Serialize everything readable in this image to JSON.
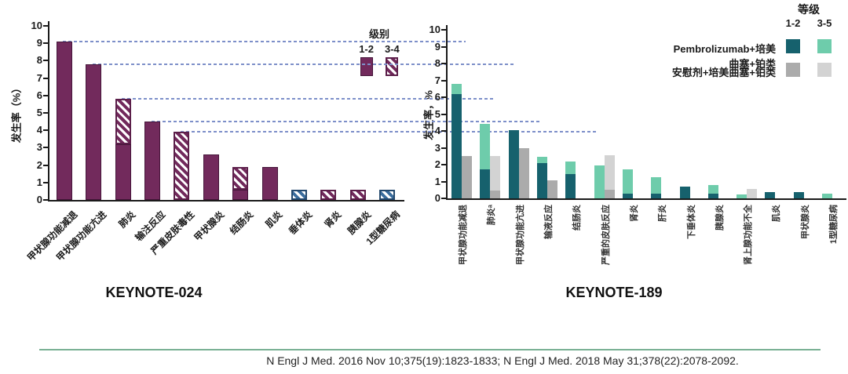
{
  "colors": {
    "purple_solid": "#722a5c",
    "hatch_purple": "#722a5c",
    "hatch_blue": "#3c6e9e",
    "teal_dark": "#16616d",
    "teal_light": "#6eccab",
    "gray_dark": "#ababab",
    "gray_light": "#d3d3d3",
    "reference_line": "#7d8fc9",
    "divider": "#79b093",
    "axis": "#1a1a1a"
  },
  "chart_data": [
    {
      "type": "bar",
      "title": "KEYNOTE-024",
      "ylabel": "发生率（%）",
      "ylim": [
        0,
        10
      ],
      "ytick_step": 1,
      "grid": false,
      "legend": {
        "title": "级别",
        "columns": [
          "1-2",
          "3-4"
        ],
        "position": "top-right-of-plot"
      },
      "categories": [
        "甲状腺功能减退",
        "甲状腺功能亢进",
        "肺炎",
        "输注反应",
        "严重皮肤毒性",
        "甲状腺炎",
        "结肠炎",
        "肌炎",
        "垂体炎",
        "肾炎",
        "胰腺炎",
        "1型糖尿病"
      ],
      "series": [
        {
          "name": "级别1-2",
          "style": "solid",
          "color": "#722a5c",
          "values": [
            9.1,
            7.8,
            3.2,
            4.5,
            0,
            2.6,
            0.6,
            1.9,
            0,
            0,
            0,
            0
          ]
        },
        {
          "name": "级别3-4",
          "style": "hatched",
          "color": "#722a5c",
          "values": [
            0,
            0,
            2.6,
            0,
            3.9,
            0,
            1.3,
            0,
            0.6,
            0.6,
            0.6,
            0.6
          ]
        }
      ],
      "hatch_blue_categories": [
        "垂体炎",
        "1型糖尿病"
      ],
      "reference_lines": [
        9.1,
        7.8,
        5.8,
        4.5,
        3.9
      ]
    },
    {
      "type": "bar",
      "title": "KEYNOTE-189",
      "ylabel": "发生率，%",
      "ylim": [
        0,
        10
      ],
      "ytick_step": 1,
      "grid": false,
      "legend": {
        "title": "等级",
        "columns": [
          "1-2",
          "3-5"
        ],
        "rows": [
          "Pembrolizumab+培美曲塞+铂类",
          "安慰剂+培美曲塞+铂类"
        ],
        "position": "top-right"
      },
      "categories": [
        "甲状腺功能减退",
        "肺炎ᵃ",
        "甲状腺功能亢进",
        "输液反应",
        "结肠炎",
        "严重的皮肤反应",
        "肾炎",
        "肝炎",
        "下垂体炎",
        "胰腺炎",
        "肾上腺功能不全",
        "肌炎",
        "甲状腺炎",
        "1型糖尿病"
      ],
      "series": [
        {
          "name": "Pembrolizumab+培美曲塞+铂类 等级1-2",
          "color": "#16616d",
          "values": [
            6.2,
            1.7,
            4.05,
            2.1,
            1.45,
            0,
            0.3,
            0.3,
            0.7,
            0.3,
            0,
            0.35,
            0.35,
            0
          ]
        },
        {
          "name": "Pembrolizumab+培美曲塞+铂类 等级3-5",
          "color": "#6eccab",
          "values": [
            0.6,
            2.7,
            0,
            0.35,
            0.75,
            1.95,
            1.4,
            0.95,
            0,
            0.5,
            0.25,
            0,
            0,
            0.3
          ]
        },
        {
          "name": "安慰剂+培美曲塞+铂类 等级1-2",
          "color": "#ababab",
          "values": [
            2.5,
            0.45,
            3.0,
            1.05,
            0,
            0.5,
            0,
            0,
            0,
            0,
            0,
            0,
            0,
            0
          ]
        },
        {
          "name": "安慰剂+培美曲塞+铂类 等级3-5",
          "color": "#d3d3d3",
          "values": [
            0,
            2.05,
            0,
            0,
            0,
            2.05,
            0,
            0,
            0,
            0,
            0.55,
            0,
            0,
            0
          ]
        }
      ]
    }
  ],
  "footer": {
    "citation": "N Engl J Med. 2016 Nov 10;375(19):1823-1833; N Engl J Med. 2018 May 31;378(22):2078-2092."
  }
}
